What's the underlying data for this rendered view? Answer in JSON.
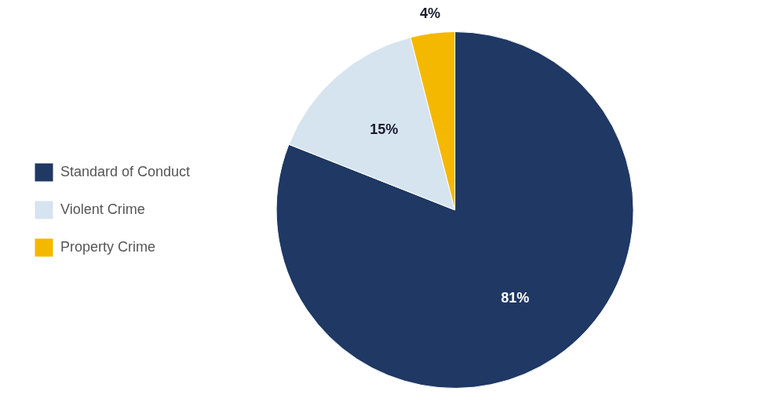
{
  "chart_data": {
    "type": "pie",
    "categories": [
      "Standard of Conduct",
      "Violent Crime",
      "Property Crime"
    ],
    "values": [
      81,
      15,
      4
    ],
    "value_labels": [
      "81%",
      "15%",
      "4%"
    ],
    "colors": [
      "#1f3864",
      "#d6e4f0",
      "#f5b800"
    ],
    "data_labels": true,
    "legend": "left"
  }
}
